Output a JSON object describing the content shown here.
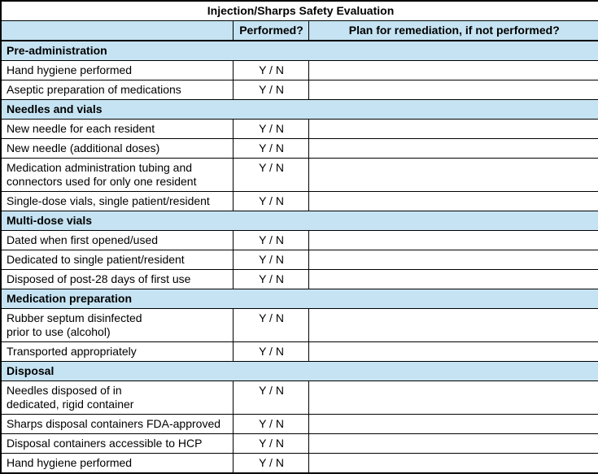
{
  "title": "Injection/Sharps Safety Evaluation",
  "columns": {
    "item": "",
    "performed": "Performed?",
    "plan": "Plan for remediation, if not performed?"
  },
  "colors": {
    "section_blue": "#C5E3F2",
    "border": "#000000",
    "background": "#FFFFFF",
    "text": "#000000"
  },
  "sections": [
    {
      "label": "Pre-administration",
      "rows": [
        {
          "label": "Hand hygiene performed",
          "performed": "Y / N",
          "plan": ""
        },
        {
          "label": "Aseptic preparation of medications",
          "performed": "Y / N",
          "plan": ""
        }
      ]
    },
    {
      "label": "Needles and vials",
      "rows": [
        {
          "label": "New needle for each resident",
          "performed": "Y / N",
          "plan": ""
        },
        {
          "label": "New needle (additional doses)",
          "performed": "Y / N",
          "plan": ""
        },
        {
          "label": "Medication administration tubing and\nconnectors used for only one resident",
          "performed": "Y / N",
          "plan": ""
        },
        {
          "label": "Single-dose vials, single patient/resident",
          "performed": "Y / N",
          "plan": ""
        }
      ]
    },
    {
      "label": "Multi-dose vials",
      "rows": [
        {
          "label": "Dated when first opened/used",
          "performed": "Y / N",
          "plan": ""
        },
        {
          "label": "Dedicated to single patient/resident",
          "performed": "Y / N",
          "plan": ""
        },
        {
          "label": "Disposed of post-28 days of first use",
          "performed": "Y / N",
          "plan": ""
        }
      ]
    },
    {
      "label": "Medication preparation",
      "rows": [
        {
          "label": "Rubber septum disinfected\nprior to use (alcohol)",
          "performed": "Y / N",
          "plan": ""
        },
        {
          "label": "Transported appropriately",
          "performed": "Y / N",
          "plan": ""
        }
      ]
    },
    {
      "label": "Disposal",
      "rows": [
        {
          "label": "Needles disposed of in\ndedicated, rigid container",
          "performed": "Y / N",
          "plan": ""
        },
        {
          "label": "Sharps disposal containers FDA-approved",
          "performed": "Y / N",
          "plan": ""
        },
        {
          "label": "Disposal containers accessible to HCP",
          "performed": "Y / N",
          "plan": ""
        },
        {
          "label": "Hand hygiene performed",
          "performed": "Y / N",
          "plan": ""
        }
      ]
    }
  ]
}
